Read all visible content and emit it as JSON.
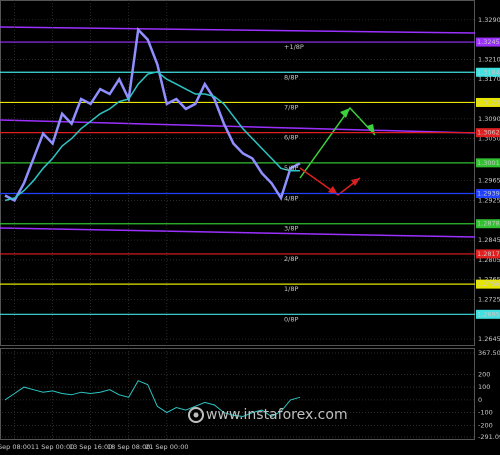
{
  "chart_data": {
    "type": "line",
    "categories": [
      null,
      "Sep 08:00",
      null,
      null,
      null,
      "11 Sep 00:00",
      null,
      null,
      null,
      "13 Sep 16:00",
      null,
      null,
      null,
      "18 Sep 08:00",
      null,
      null,
      null,
      "21 Sep 00:00",
      null,
      null,
      null,
      null,
      null,
      null,
      null,
      null,
      null,
      null,
      null,
      null,
      null,
      null
    ],
    "series": [
      {
        "color": "#8f8fff",
        "values": [
          1.2935,
          1.2925,
          1.296,
          1.301,
          1.306,
          1.304,
          1.31,
          1.308,
          1.313,
          1.312,
          1.315,
          1.314,
          1.317,
          1.313,
          1.327,
          1.325,
          1.32,
          1.312,
          1.313,
          1.311,
          1.312,
          1.316,
          1.313,
          1.308,
          1.304,
          1.302,
          1.301,
          1.298,
          1.296,
          1.293,
          1.299,
          1.3
        ]
      },
      {
        "color": "#2ec4c4",
        "values": [
          1.2925,
          1.293,
          1.2945,
          1.2965,
          1.299,
          1.301,
          1.3035,
          1.305,
          1.307,
          1.3085,
          1.31,
          1.311,
          1.3125,
          1.313,
          1.316,
          1.318,
          1.3185,
          1.317,
          1.316,
          1.315,
          1.314,
          1.314,
          1.3135,
          1.312,
          1.3095,
          1.307,
          1.305,
          1.303,
          1.301,
          1.299,
          1.2985,
          1.2985
        ]
      }
    ],
    "ylim": [
      1.2633,
      1.333
    ],
    "yticks": [
      {
        "value": 1.329,
        "label": "1.3290"
      },
      {
        "value": 1.321,
        "label": "1.3210"
      },
      {
        "value": 1.317,
        "label": "1.3170"
      },
      {
        "value": 1.309,
        "label": "1.3090"
      },
      {
        "value": 1.305,
        "label": "1.3050"
      },
      {
        "value": 1.2965,
        "label": "1.2965"
      },
      {
        "value": 1.2925,
        "label": "1.2925"
      },
      {
        "value": 1.2845,
        "label": "1.2845"
      },
      {
        "value": 1.2805,
        "label": "1.2805"
      },
      {
        "value": 1.2765,
        "label": "1.2765"
      },
      {
        "value": 1.2725,
        "label": "1.2725"
      },
      {
        "value": 1.2645,
        "label": "1.2645"
      }
    ],
    "grid": true,
    "levels": [
      {
        "label": "+1/8P",
        "value": 1.3245,
        "color": "#9b30ff"
      },
      {
        "label": "8/8P",
        "value": 1.3184,
        "color": "#40e0e0"
      },
      {
        "label": "7/8P",
        "value": 1.3123,
        "color": "#e6e600"
      },
      {
        "label": "6/8P",
        "value": 1.3062,
        "color": "#e02020"
      },
      {
        "label": "5/8P",
        "value": 1.3001,
        "color": "#30c030"
      },
      {
        "label": "4/8P",
        "value": 1.2939,
        "color": "#2040ff"
      },
      {
        "label": "3/8P",
        "value": 1.2878,
        "color": "#30c030"
      },
      {
        "label": "2/8P",
        "value": 1.2817,
        "color": "#e02020"
      },
      {
        "label": "1/8P",
        "value": 1.2756,
        "color": "#e6e600"
      },
      {
        "label": "0/8P",
        "value": 1.2695,
        "color": "#40e0e0"
      }
    ],
    "indicator": {
      "color": "#2ec4c4",
      "values": [
        0,
        50,
        100,
        80,
        60,
        70,
        50,
        40,
        60,
        50,
        60,
        80,
        40,
        20,
        150,
        120,
        -50,
        -100,
        -60,
        -80,
        -50,
        -20,
        -40,
        -100,
        -120,
        -130,
        -100,
        -80,
        -130,
        -90,
        0,
        20
      ],
      "ylim": [
        -291.093,
        367.5088
      ],
      "yticks": [
        {
          "value": 367.5088,
          "label": "367.5088"
        },
        200,
        100,
        0,
        -100,
        -200,
        {
          "value": -291.093,
          "label": "-291.093"
        }
      ]
    },
    "watermark": "www.instaforex.com"
  }
}
